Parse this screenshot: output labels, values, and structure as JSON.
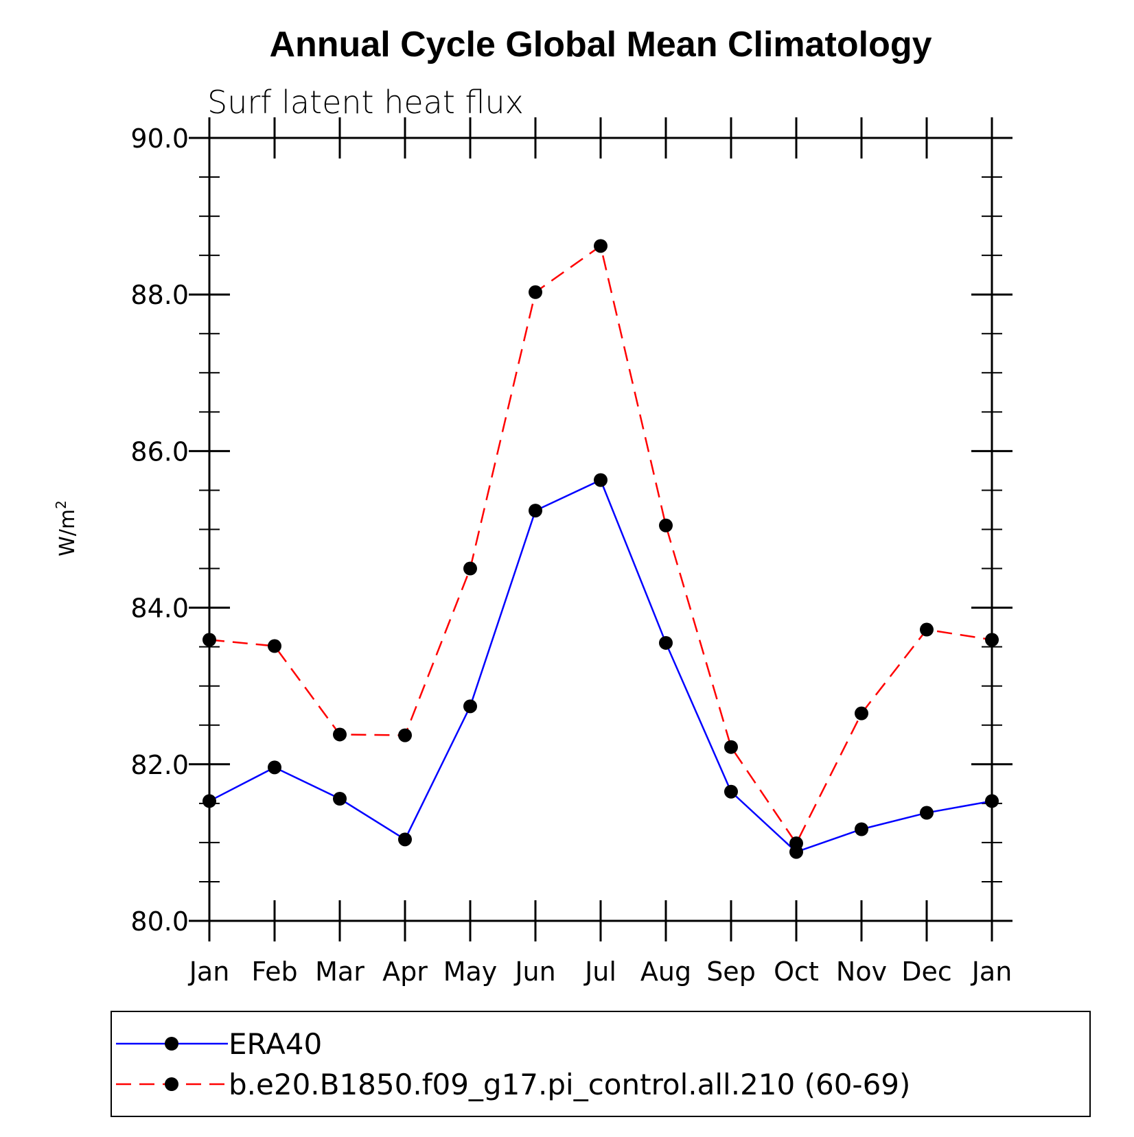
{
  "chart_data": {
    "type": "line",
    "title": "Annual Cycle Global Mean Climatology",
    "subtitle": "Surf latent heat flux",
    "xlabel": "",
    "ylabel": "W/m",
    "ylabel_superscript": "2",
    "categories": [
      "Jan",
      "Feb",
      "Mar",
      "Apr",
      "May",
      "Jun",
      "Jul",
      "Aug",
      "Sep",
      "Oct",
      "Nov",
      "Dec",
      "Jan"
    ],
    "ylim": [
      80.0,
      90.0
    ],
    "y_major_ticks": [
      80.0,
      82.0,
      84.0,
      86.0,
      88.0,
      90.0
    ],
    "y_tick_labels": [
      "80.0",
      "82.0",
      "84.0",
      "86.0",
      "88.0",
      "90.0"
    ],
    "y_minor_step": 0.5,
    "grid": false,
    "series": [
      {
        "name": "ERA40",
        "color": "#0000ff",
        "dash": "solid",
        "marker": "filled-circle",
        "values": [
          81.53,
          81.96,
          81.56,
          81.04,
          82.74,
          85.24,
          85.63,
          83.55,
          81.65,
          80.88,
          81.17,
          81.38,
          81.53
        ]
      },
      {
        "name": "b.e20.B1850.f09_g17.pi_control.all.210 (60-69)",
        "color": "#ff0000",
        "dash": "dashed",
        "marker": "filled-circle",
        "values": [
          83.59,
          83.51,
          82.38,
          82.37,
          84.5,
          88.03,
          88.62,
          85.05,
          82.22,
          80.99,
          82.65,
          83.72,
          83.59
        ]
      }
    ],
    "legend_position": "bottom"
  }
}
